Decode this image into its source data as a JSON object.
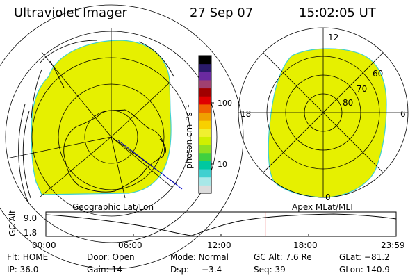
{
  "header": {
    "title": "Ultraviolet Imager",
    "date": "27 Sep 07",
    "time": "15:02:05 UT"
  },
  "colorbar": {
    "unit_label": "photon cm⁻²s⁻¹",
    "ticks": [
      "100",
      "10"
    ],
    "colors": [
      "#dcdcdc",
      "#a8e8e8",
      "#40d0d0",
      "#00c8a0",
      "#40d040",
      "#90e020",
      "#d0f000",
      "#f0f030",
      "#f8d000",
      "#f0a000",
      "#f06000",
      "#e00000",
      "#a00000",
      "#a04070",
      "#6a2aa0",
      "#2a1a6a",
      "#000000"
    ]
  },
  "left_panel": {
    "label": "Geographic Lat/Lon",
    "fill_color": "#e6f000"
  },
  "right_panel": {
    "label": "Apex MLat/MLT",
    "mlt_labels": {
      "top": "12",
      "left": "18",
      "right": "6",
      "bottom": "0"
    },
    "lat_labels": [
      "60",
      "70",
      "80"
    ],
    "fill_color": "#e6f000"
  },
  "altitude_plot": {
    "ylabel": "GC Alt",
    "y_ticks": [
      "9.0",
      "1.8"
    ],
    "x_ticks": [
      "00:00",
      "06:00",
      "12:00",
      "18:00",
      "23:59"
    ],
    "current_time_marker_hours": 15.03
  },
  "status": {
    "row1": {
      "flt": "Flt: HOME",
      "door": "Door: Open",
      "mode": "Mode: Normal",
      "gcalt": "GC Alt: 7.6 Re",
      "glat": "GLat: −81.2"
    },
    "row2": {
      "ip": "IP: 36.0",
      "gain": "Gain: 14",
      "dsp_label": "Dsp:",
      "dsp_value": "−3.4",
      "seq": "Seq: 39",
      "glon": "GLon: 140.9"
    }
  }
}
